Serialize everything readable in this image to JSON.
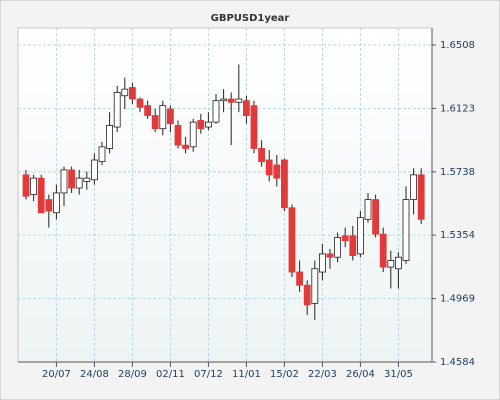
{
  "chart_data": {
    "type": "candlestick",
    "title": "GBPUSD1year",
    "categories": [
      null,
      null,
      null,
      null,
      "20/07",
      null,
      null,
      null,
      null,
      "24/08",
      null,
      null,
      null,
      null,
      "28/09",
      null,
      null,
      null,
      null,
      "02/11",
      null,
      null,
      null,
      null,
      "07/12",
      null,
      null,
      null,
      null,
      "11/01",
      null,
      null,
      null,
      null,
      "15/02",
      null,
      null,
      null,
      null,
      "22/03",
      null,
      null,
      null,
      null,
      "26/04",
      null,
      null,
      null,
      null,
      "31/05",
      null,
      null,
      null
    ],
    "open": [
      1.572,
      1.56,
      1.57,
      1.557,
      1.549,
      1.561,
      1.575,
      1.564,
      1.568,
      1.569,
      1.58,
      1.588,
      1.601,
      1.62,
      1.625,
      1.618,
      1.614,
      1.608,
      1.6,
      1.612,
      1.602,
      1.59,
      1.589,
      1.605,
      1.601,
      1.604,
      1.617,
      1.618,
      1.616,
      1.617,
      1.614,
      1.588,
      1.581,
      1.578,
      1.581,
      1.552,
      1.513,
      1.505,
      1.494,
      1.513,
      1.524,
      1.522,
      1.535,
      1.535,
      1.524,
      1.545,
      1.557,
      1.536,
      1.516,
      1.515,
      1.52,
      1.557,
      1.572
    ],
    "high": [
      1.575,
      1.572,
      1.572,
      1.56,
      1.566,
      1.577,
      1.577,
      1.575,
      1.574,
      1.585,
      1.592,
      1.61,
      1.626,
      1.631,
      1.628,
      1.619,
      1.617,
      1.612,
      1.617,
      1.614,
      1.605,
      1.595,
      1.606,
      1.609,
      1.61,
      1.621,
      1.624,
      1.622,
      1.639,
      1.62,
      1.617,
      1.593,
      1.587,
      1.584,
      1.582,
      1.554,
      1.52,
      1.508,
      1.52,
      1.53,
      1.527,
      1.537,
      1.54,
      1.541,
      1.55,
      1.561,
      1.56,
      1.54,
      1.526,
      1.525,
      1.565,
      1.576,
      1.576
    ],
    "low": [
      1.557,
      1.556,
      1.549,
      1.54,
      1.545,
      1.553,
      1.561,
      1.56,
      1.563,
      1.566,
      1.578,
      1.585,
      1.598,
      1.612,
      1.615,
      1.61,
      1.606,
      1.598,
      1.596,
      1.598,
      1.588,
      1.585,
      1.586,
      1.597,
      1.599,
      1.603,
      1.61,
      1.59,
      1.61,
      1.603,
      1.585,
      1.577,
      1.568,
      1.565,
      1.55,
      1.51,
      1.501,
      1.487,
      1.484,
      1.508,
      1.515,
      1.519,
      1.528,
      1.52,
      1.522,
      1.543,
      1.534,
      1.513,
      1.503,
      1.503,
      1.518,
      1.548,
      1.542
    ],
    "close": [
      1.559,
      1.57,
      1.549,
      1.55,
      1.561,
      1.575,
      1.564,
      1.57,
      1.57,
      1.581,
      1.589,
      1.602,
      1.622,
      1.624,
      1.618,
      1.613,
      1.608,
      1.6,
      1.614,
      1.603,
      1.59,
      1.588,
      1.604,
      1.6,
      1.604,
      1.617,
      1.618,
      1.616,
      1.618,
      1.608,
      1.588,
      1.58,
      1.572,
      1.57,
      1.552,
      1.513,
      1.505,
      1.493,
      1.515,
      1.524,
      1.522,
      1.534,
      1.532,
      1.523,
      1.546,
      1.557,
      1.536,
      1.516,
      1.52,
      1.522,
      1.557,
      1.572,
      1.545
    ],
    "up_color": "#ffffff",
    "down_color": "#e03a3a",
    "ylim": [
      1.4584,
      1.6508
    ],
    "yticks": [
      1.6508,
      1.6123,
      1.5738,
      1.5354,
      1.4969,
      1.4584
    ],
    "grid": true
  }
}
